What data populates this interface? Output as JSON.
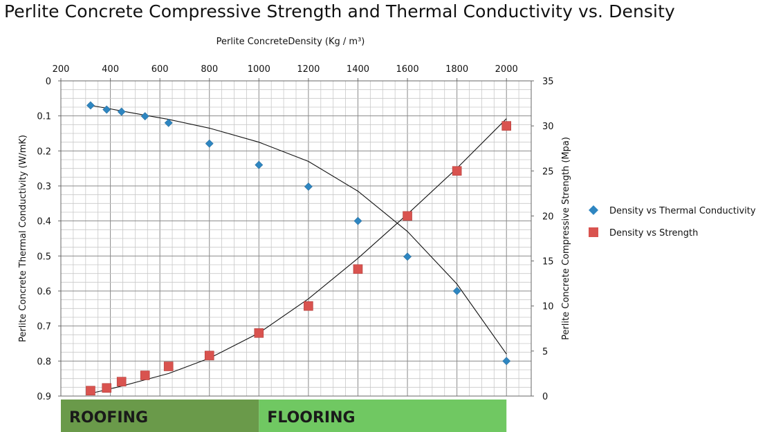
{
  "chart_data": {
    "type": "scatter",
    "title": "Perlite Concrete Compressive Strength and Thermal Conductivity vs. Density",
    "xlabel": "Perlite ConcreteDensity (Kg / m³)",
    "ylabel_left": "Perlite Concrete Thermal Conductivity (W/mK)",
    "ylabel_right": "Perlite Concrete Compressive Strength (Mpa)",
    "xlim": [
      200,
      2100
    ],
    "x_ticks": [
      200,
      400,
      600,
      800,
      1000,
      1200,
      1400,
      1600,
      1800,
      2000
    ],
    "y_left_lim": [
      0,
      0.9
    ],
    "y_left_reversed": true,
    "y_left_ticks": [
      "0",
      "0.1",
      "0.2",
      "0.3",
      "0.4",
      "0.5",
      "0.6",
      "0.7",
      "0.8",
      "0.9"
    ],
    "y_right_lim": [
      0,
      35
    ],
    "y_right_ticks": [
      0,
      5,
      10,
      15,
      20,
      25,
      30,
      35
    ],
    "grid": true,
    "legend_position": "right",
    "series": [
      {
        "name": "Density vs Thermal Conductivity",
        "axis": "left",
        "marker": "diamond",
        "color": "#2e86c1",
        "points": [
          [
            320,
            0.07
          ],
          [
            385,
            0.082
          ],
          [
            445,
            0.088
          ],
          [
            540,
            0.101
          ],
          [
            635,
            0.12
          ],
          [
            800,
            0.179
          ],
          [
            1000,
            0.24
          ],
          [
            1200,
            0.302
          ],
          [
            1400,
            0.4
          ],
          [
            1600,
            0.502
          ],
          [
            1800,
            0.6
          ],
          [
            2000,
            0.8
          ]
        ]
      },
      {
        "name": "Density vs Strength",
        "axis": "right",
        "marker": "square",
        "color": "#d9534f",
        "points": [
          [
            320,
            0.6
          ],
          [
            385,
            0.9
          ],
          [
            445,
            1.6
          ],
          [
            540,
            2.3
          ],
          [
            635,
            3.3
          ],
          [
            800,
            4.5
          ],
          [
            1000,
            7.0
          ],
          [
            1200,
            10.0
          ],
          [
            1400,
            14.1
          ],
          [
            1600,
            20.0
          ],
          [
            1800,
            25.0
          ],
          [
            2000,
            30.0
          ]
        ]
      }
    ],
    "trendlines": [
      {
        "axis": "left",
        "points": [
          [
            320,
            0.07
          ],
          [
            385,
            0.078
          ],
          [
            445,
            0.086
          ],
          [
            540,
            0.098
          ],
          [
            635,
            0.11
          ],
          [
            800,
            0.135
          ],
          [
            1000,
            0.175
          ],
          [
            1200,
            0.23
          ],
          [
            1400,
            0.315
          ],
          [
            1600,
            0.43
          ],
          [
            1800,
            0.58
          ],
          [
            2000,
            0.78
          ]
        ]
      },
      {
        "axis": "right",
        "points": [
          [
            320,
            0.3
          ],
          [
            385,
            0.7
          ],
          [
            445,
            1.1
          ],
          [
            540,
            1.8
          ],
          [
            635,
            2.5
          ],
          [
            800,
            4.2
          ],
          [
            1000,
            7.0
          ],
          [
            1200,
            10.8
          ],
          [
            1400,
            15.3
          ],
          [
            1600,
            20.2
          ],
          [
            1800,
            25.3
          ],
          [
            2000,
            30.8
          ]
        ]
      }
    ],
    "bands": [
      {
        "label": "ROOFING",
        "x_range": [
          200,
          1000
        ],
        "color": "#6a9a4a"
      },
      {
        "label": "FLOORING",
        "x_range": [
          1000,
          2000
        ],
        "color": "#70c862"
      }
    ]
  }
}
